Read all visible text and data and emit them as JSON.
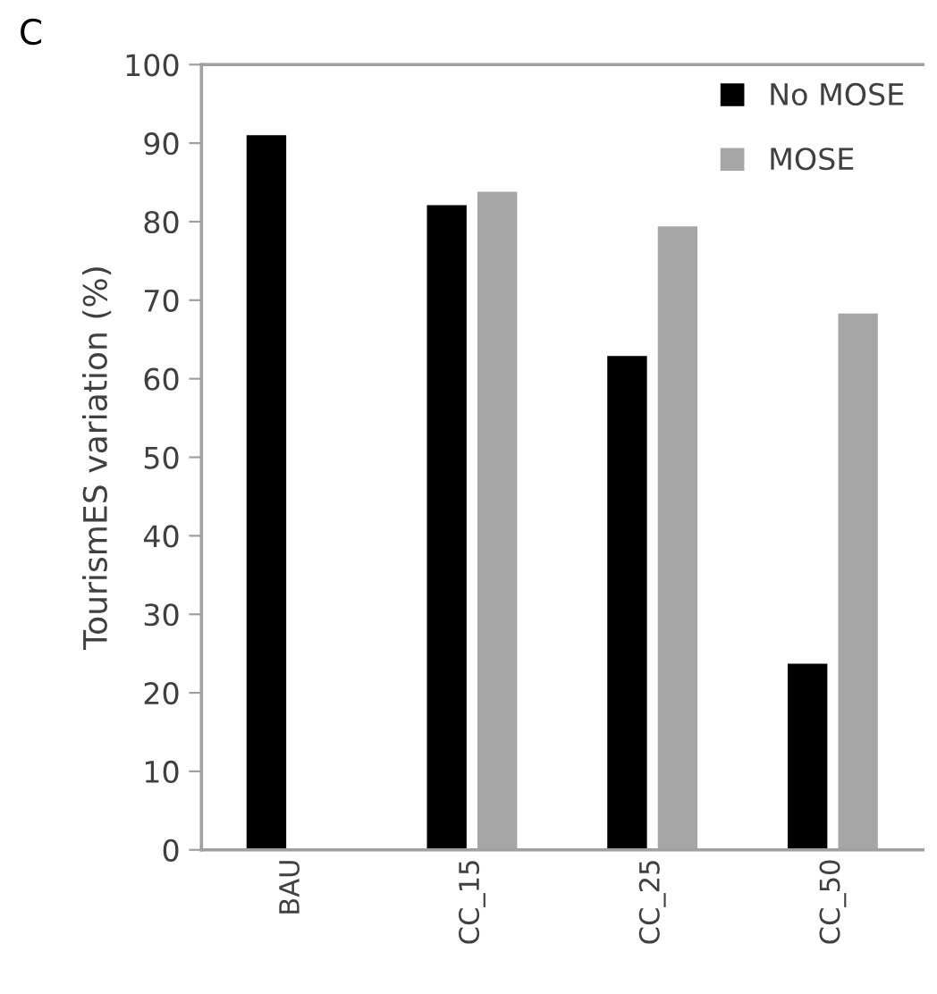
{
  "chart_data": {
    "type": "bar",
    "ylabel": "TourismES variation (%)",
    "annotations": [
      "C"
    ],
    "categories": [
      "BAU",
      "CC_15",
      "CC_25",
      "CC_50"
    ],
    "series": [
      {
        "name": "No MOSE",
        "color": "#000000",
        "values": [
          91,
          82.1,
          62.9,
          23.7
        ]
      },
      {
        "name": "MOSE",
        "color": "#a6a6a6",
        "values": [
          null,
          83.8,
          79.4,
          68.3
        ]
      }
    ],
    "ylim": [
      0,
      100
    ],
    "yticks": [
      0,
      10,
      20,
      30,
      40,
      50,
      60,
      70,
      80,
      90,
      100
    ],
    "grid": false,
    "legend": "top right"
  }
}
